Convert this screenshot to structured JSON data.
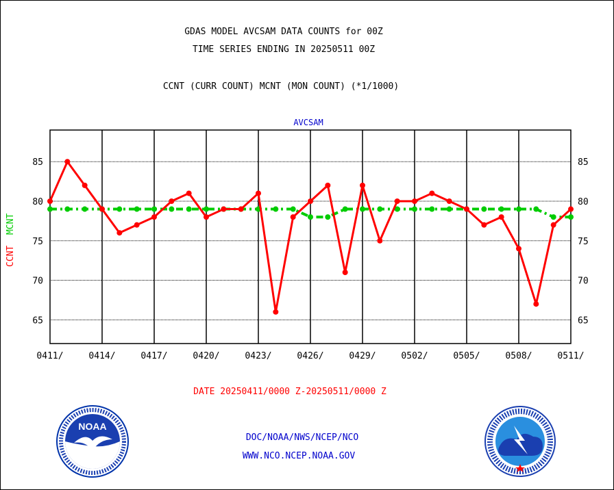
{
  "title_line1": "GDAS MODEL AVCSAM DATA COUNTS for 00Z",
  "title_line2": "TIME SERIES ENDING IN 20250511 00Z",
  "title_line3": "CCNT (CURR COUNT) MCNT (MON COUNT) (*1/1000)",
  "ylabel_ccnt": "CCNT",
  "ylabel_mcnt": "MCNT",
  "date_range": "DATE 20250411/0000 Z-20250511/0000 Z",
  "footer": {
    "link1": "DOC/NOAA/NWS/NCEP/NCO",
    "link2": "WWW.NCO.NCEP.NOAA.GOV"
  },
  "logos": {
    "noaa_text": "NOAA",
    "nws_icon": "national-weather-service-logo"
  },
  "colors": {
    "ccnt": "#ff0000",
    "mcnt": "#00cc00",
    "panel_title": "#0000cc"
  },
  "chart_data": {
    "type": "line",
    "panel_title": "AVCSAM",
    "x": [
      "0411",
      "0412",
      "0413",
      "0414",
      "0415",
      "0416",
      "0417",
      "0418",
      "0419",
      "0420",
      "0421",
      "0422",
      "0423",
      "0424",
      "0425",
      "0426",
      "0427",
      "0428",
      "0429",
      "0430",
      "0501",
      "0502",
      "0503",
      "0504",
      "0505",
      "0506",
      "0507",
      "0508",
      "0509",
      "0510",
      "0511"
    ],
    "x_tick_labels": [
      "0411/",
      "0414/",
      "0417/",
      "0420/",
      "0423/",
      "0426/",
      "0429/",
      "0502/",
      "0505/",
      "0508/",
      "0511/"
    ],
    "y_ticks": [
      65,
      70,
      75,
      80,
      85
    ],
    "ylim": [
      62,
      89
    ],
    "grid": true,
    "series": [
      {
        "name": "CCNT",
        "style": "solid",
        "values": [
          80,
          85,
          82,
          79,
          76,
          77,
          78,
          80,
          81,
          78,
          79,
          79,
          81,
          66,
          78,
          80,
          82,
          71,
          82,
          75,
          80,
          80,
          81,
          80,
          79,
          77,
          78,
          74,
          67,
          77,
          79
        ]
      },
      {
        "name": "MCNT",
        "style": "dashed",
        "values": [
          79,
          79,
          79,
          79,
          79,
          79,
          79,
          79,
          79,
          79,
          79,
          79,
          79,
          79,
          79,
          78,
          78,
          79,
          79,
          79,
          79,
          79,
          79,
          79,
          79,
          79,
          79,
          79,
          79,
          78,
          78
        ]
      }
    ]
  }
}
